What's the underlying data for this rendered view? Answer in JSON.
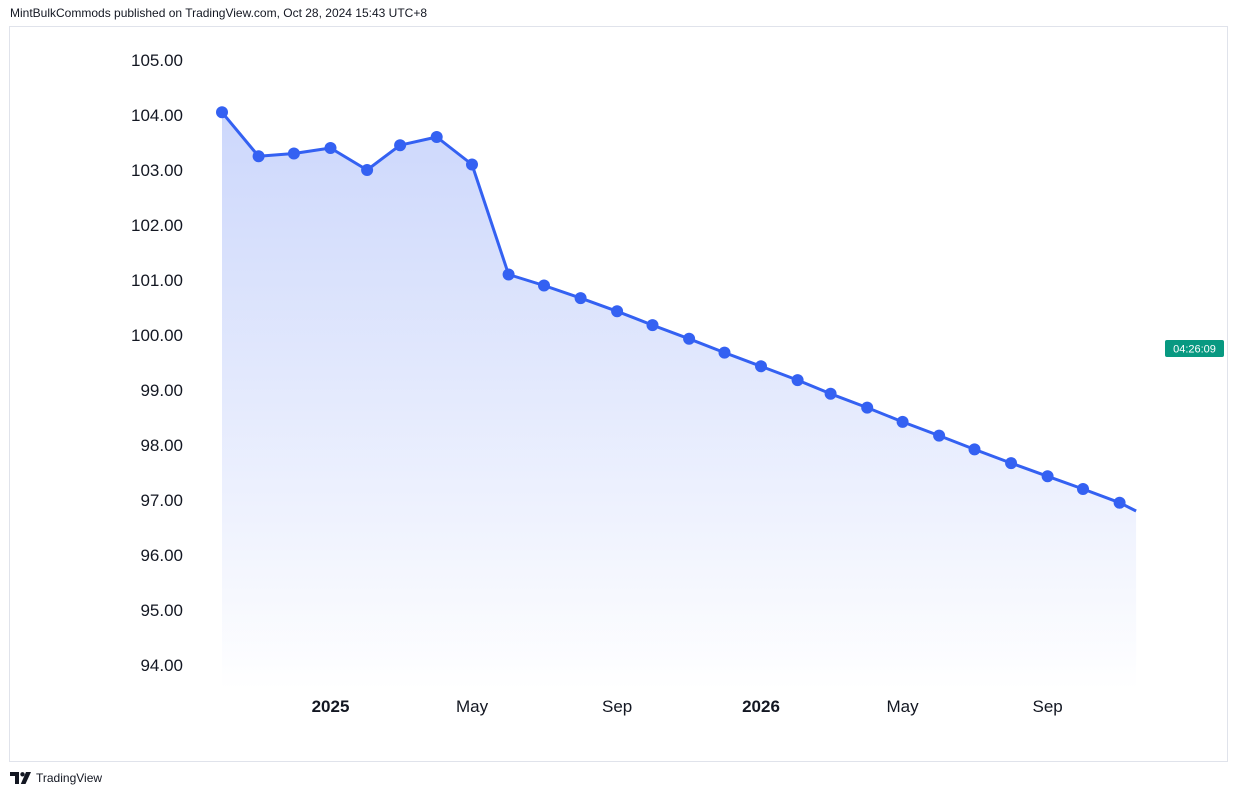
{
  "header": {
    "publish_text": "MintBulkCommods published on TradingView.com, Oct 28, 2024 15:43 UTC+8"
  },
  "footer": {
    "brand": "TradingView",
    "logo_icon": "tradingview-logo-icon"
  },
  "countdown": {
    "text": "04:26:09",
    "color": "#089981"
  },
  "colors": {
    "line": "#3461f2",
    "fill_top": "#c7d3fb",
    "fill_bottom": "#ffffff"
  },
  "chart_data": {
    "type": "area",
    "y_tick_labels": [
      "105.00",
      "104.00",
      "103.00",
      "102.00",
      "101.00",
      "100.00",
      "99.00",
      "98.00",
      "97.00",
      "96.00",
      "95.00",
      "94.00"
    ],
    "ylim": [
      94,
      105
    ],
    "x_tick_labels": [
      {
        "date": "2025-01-01",
        "label": "2025",
        "bold": true
      },
      {
        "date": "2025-05-01",
        "label": "May",
        "bold": false
      },
      {
        "date": "2025-09-01",
        "label": "Sep",
        "bold": false
      },
      {
        "date": "2026-01-01",
        "label": "2026",
        "bold": true
      },
      {
        "date": "2026-05-01",
        "label": "May",
        "bold": false
      },
      {
        "date": "2026-09-01",
        "label": "Sep",
        "bold": false
      }
    ],
    "grid": false,
    "series": [
      {
        "points": [
          {
            "x": "2024-10-01",
            "y": 104.05
          },
          {
            "x": "2024-11-01",
            "y": 103.25
          },
          {
            "x": "2024-12-01",
            "y": 103.3
          },
          {
            "x": "2025-01-01",
            "y": 103.4
          },
          {
            "x": "2025-02-01",
            "y": 103.0
          },
          {
            "x": "2025-03-01",
            "y": 103.45
          },
          {
            "x": "2025-04-01",
            "y": 103.6
          },
          {
            "x": "2025-05-01",
            "y": 103.1
          },
          {
            "x": "2025-06-01",
            "y": 101.1
          },
          {
            "x": "2025-07-01",
            "y": 100.9
          },
          {
            "x": "2025-08-01",
            "y": 100.67
          },
          {
            "x": "2025-09-01",
            "y": 100.43
          },
          {
            "x": "2025-10-01",
            "y": 100.18
          },
          {
            "x": "2025-11-01",
            "y": 99.93
          },
          {
            "x": "2025-12-01",
            "y": 99.68
          },
          {
            "x": "2026-01-01",
            "y": 99.43
          },
          {
            "x": "2026-02-01",
            "y": 99.18
          },
          {
            "x": "2026-03-01",
            "y": 98.93
          },
          {
            "x": "2026-04-01",
            "y": 98.68
          },
          {
            "x": "2026-05-01",
            "y": 98.42
          },
          {
            "x": "2026-06-01",
            "y": 98.17
          },
          {
            "x": "2026-07-01",
            "y": 97.92
          },
          {
            "x": "2026-08-01",
            "y": 97.67
          },
          {
            "x": "2026-09-01",
            "y": 97.43
          },
          {
            "x": "2026-10-01",
            "y": 97.2
          },
          {
            "x": "2026-11-01",
            "y": 96.95
          },
          {
            "x": "2026-11-15",
            "y": 96.8,
            "marker": false
          }
        ]
      }
    ]
  }
}
